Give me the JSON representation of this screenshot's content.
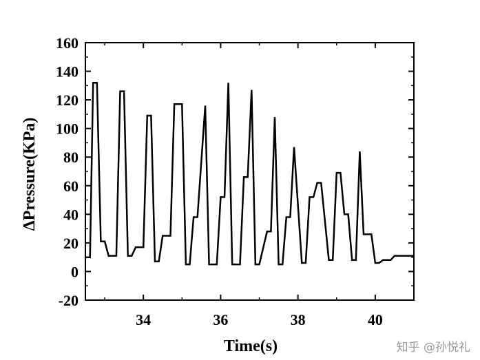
{
  "chart_data": {
    "type": "line",
    "xlabel": "Time(s)",
    "ylabel": "ΔPressure(KPa)",
    "xlim": [
      32.5,
      41.0
    ],
    "ylim": [
      -20,
      160
    ],
    "xticks": [
      34,
      36,
      38,
      40
    ],
    "xtick_labels": [
      "34",
      "36",
      "38",
      "40"
    ],
    "yticks": [
      -20,
      0,
      20,
      40,
      60,
      80,
      100,
      120,
      140,
      160
    ],
    "ytick_labels": [
      "-20",
      "0",
      "20",
      "40",
      "60",
      "80",
      "100",
      "120",
      "140",
      "160"
    ],
    "grid": false,
    "series": [
      {
        "color": "#000000",
        "x": [
          32.5,
          32.62,
          32.7,
          32.8,
          32.9,
          33.0,
          33.1,
          33.3,
          33.4,
          33.5,
          33.6,
          33.7,
          33.8,
          34.0,
          34.1,
          34.2,
          34.3,
          34.4,
          34.5,
          34.7,
          34.8,
          35.0,
          35.1,
          35.2,
          35.3,
          35.4,
          35.6,
          35.7,
          35.9,
          36.0,
          36.1,
          36.2,
          36.3,
          36.5,
          36.6,
          36.7,
          36.8,
          36.9,
          37.0,
          37.2,
          37.3,
          37.4,
          37.5,
          37.6,
          37.7,
          37.8,
          37.9,
          38.1,
          38.2,
          38.3,
          38.4,
          38.5,
          38.6,
          38.8,
          38.9,
          39.0,
          39.1,
          39.2,
          39.3,
          39.4,
          39.5,
          39.6,
          39.7,
          39.9,
          40.0,
          40.1,
          40.2,
          40.4,
          40.5,
          40.6,
          40.8,
          40.9,
          41.0
        ],
        "y": [
          10,
          10,
          132,
          132,
          21,
          21,
          11,
          11,
          126,
          126,
          11,
          11,
          17,
          17,
          109,
          109,
          7,
          7,
          25,
          25,
          117,
          117,
          5,
          5,
          38,
          38,
          116,
          5,
          5,
          52,
          52,
          132,
          5,
          5,
          66,
          66,
          127,
          5,
          5,
          28,
          28,
          108,
          5,
          5,
          38,
          38,
          87,
          6,
          6,
          52,
          52,
          62,
          62,
          8,
          8,
          69,
          69,
          40,
          40,
          8,
          8,
          84,
          26,
          26,
          6,
          6,
          8,
          8,
          11,
          11,
          11,
          11,
          11
        ]
      }
    ]
  },
  "watermark": "知乎 @孙悦礼"
}
